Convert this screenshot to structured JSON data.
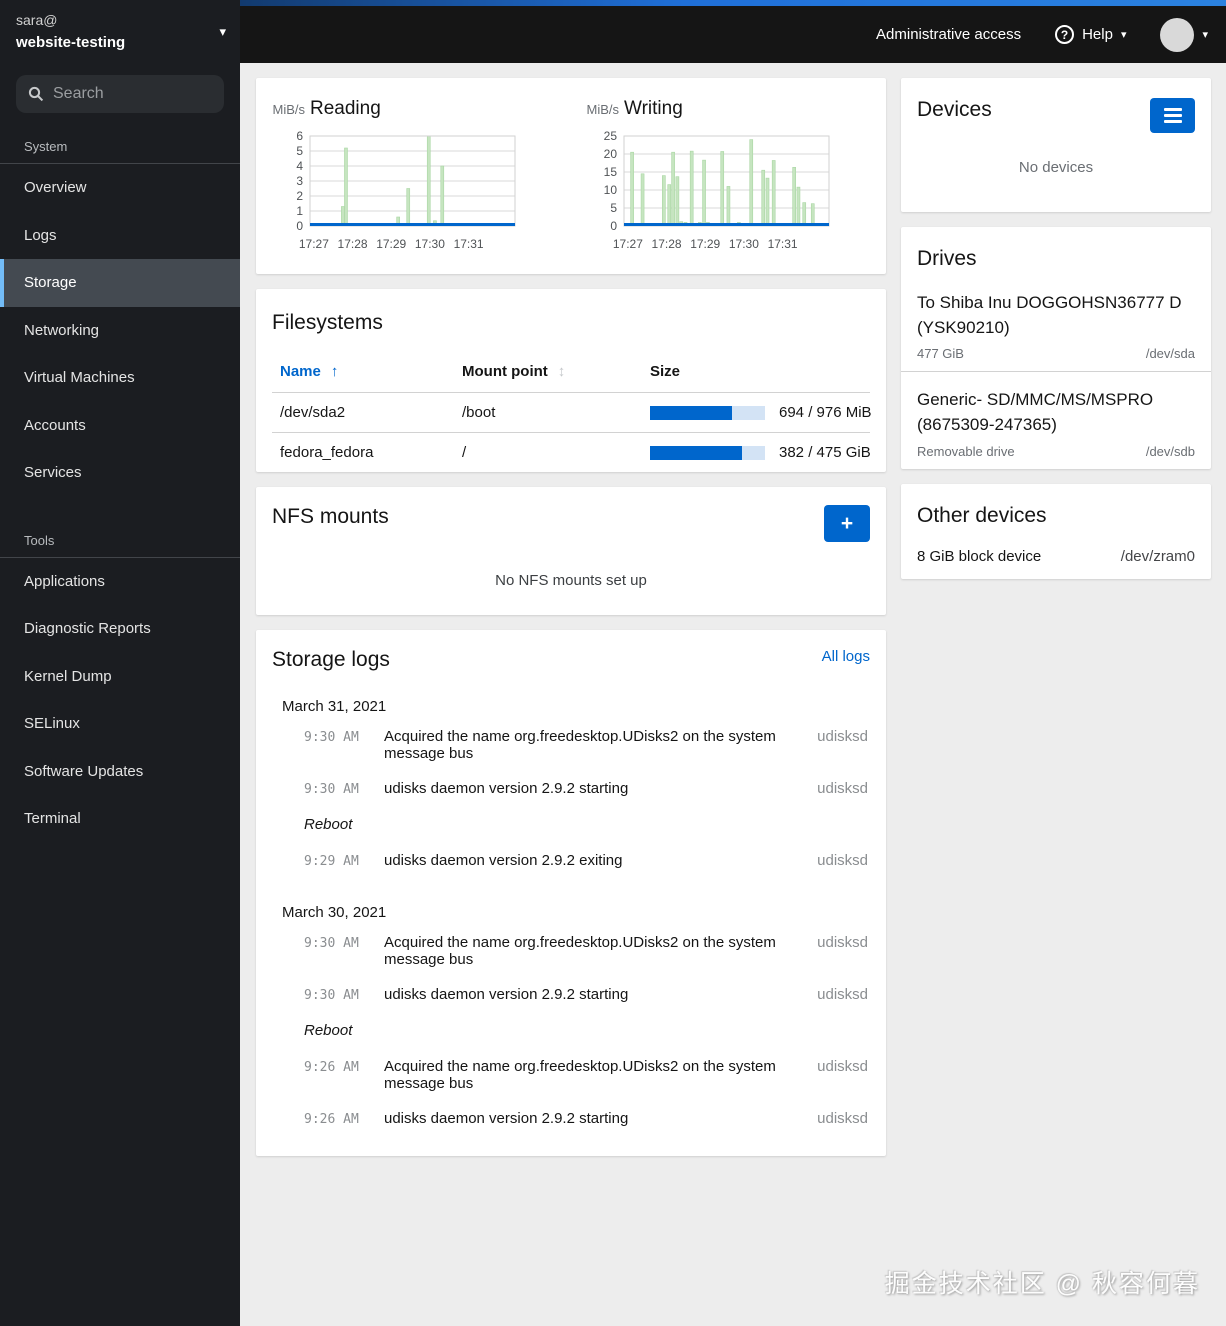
{
  "sidebar": {
    "user": "sara@",
    "host": "website-testing",
    "search_placeholder": "Search",
    "sections": [
      {
        "label": "System",
        "items": [
          {
            "label": "Overview"
          },
          {
            "label": "Logs"
          },
          {
            "label": "Storage"
          },
          {
            "label": "Networking"
          },
          {
            "label": "Virtual Machines"
          },
          {
            "label": "Accounts"
          },
          {
            "label": "Services"
          }
        ]
      },
      {
        "label": "Tools",
        "items": [
          {
            "label": "Applications"
          },
          {
            "label": "Diagnostic Reports"
          },
          {
            "label": "Kernel Dump"
          },
          {
            "label": "SELinux"
          },
          {
            "label": "Software Updates"
          },
          {
            "label": "Terminal"
          }
        ]
      }
    ],
    "active_item": "Storage"
  },
  "masthead": {
    "admin_access": "Administrative access",
    "help": "Help"
  },
  "chart_data": [
    {
      "type": "spike",
      "title": "Reading",
      "unit": "MiB/s",
      "ylim": [
        0,
        6
      ],
      "yticks": [
        0,
        1,
        2,
        3,
        4,
        5,
        6
      ],
      "xlim": [
        0,
        5.3
      ],
      "xticks": [
        {
          "x": 0.1,
          "label": "17:27"
        },
        {
          "x": 1.1,
          "label": "17:28"
        },
        {
          "x": 2.1,
          "label": "17:29"
        },
        {
          "x": 3.1,
          "label": "17:30"
        },
        {
          "x": 4.1,
          "label": "17:31"
        }
      ],
      "points": [
        {
          "x": 0.85,
          "y": 1.3
        },
        {
          "x": 0.93,
          "y": 5.2
        },
        {
          "x": 1.7,
          "y": 0.15
        },
        {
          "x": 2.28,
          "y": 0.6
        },
        {
          "x": 2.54,
          "y": 2.5
        },
        {
          "x": 3.07,
          "y": 6.0
        },
        {
          "x": 3.23,
          "y": 0.35
        },
        {
          "x": 3.42,
          "y": 4.0
        }
      ],
      "grid": true,
      "spike_color": "#c6e5c0",
      "spike_edge": "#a9d6a3",
      "baseline_color": "#0066cc"
    },
    {
      "type": "spike",
      "title": "Writing",
      "unit": "MiB/s",
      "ylim": [
        0,
        25
      ],
      "yticks": [
        0,
        5,
        10,
        15,
        20,
        25
      ],
      "xlim": [
        0,
        5.3
      ],
      "xticks": [
        {
          "x": 0.1,
          "label": "17:27"
        },
        {
          "x": 1.1,
          "label": "17:28"
        },
        {
          "x": 2.1,
          "label": "17:29"
        },
        {
          "x": 3.1,
          "label": "17:30"
        },
        {
          "x": 4.1,
          "label": "17:31"
        }
      ],
      "points": [
        {
          "x": 0.21,
          "y": 20.5
        },
        {
          "x": 0.48,
          "y": 14.5
        },
        {
          "x": 1.03,
          "y": 14.0
        },
        {
          "x": 1.17,
          "y": 11.5
        },
        {
          "x": 1.27,
          "y": 20.5
        },
        {
          "x": 1.38,
          "y": 13.7
        },
        {
          "x": 1.48,
          "y": 1.2
        },
        {
          "x": 1.59,
          "y": 1.0
        },
        {
          "x": 1.75,
          "y": 20.8
        },
        {
          "x": 1.96,
          "y": 1.0
        },
        {
          "x": 2.07,
          "y": 18.3
        },
        {
          "x": 2.17,
          "y": 1.0
        },
        {
          "x": 2.54,
          "y": 20.7
        },
        {
          "x": 2.7,
          "y": 11.0
        },
        {
          "x": 2.97,
          "y": 1.0
        },
        {
          "x": 3.29,
          "y": 24.0
        },
        {
          "x": 3.6,
          "y": 15.5
        },
        {
          "x": 3.71,
          "y": 13.3
        },
        {
          "x": 3.87,
          "y": 18.2
        },
        {
          "x": 4.4,
          "y": 16.3
        },
        {
          "x": 4.51,
          "y": 10.8
        },
        {
          "x": 4.66,
          "y": 6.5
        },
        {
          "x": 4.88,
          "y": 6.2
        }
      ],
      "grid": true,
      "spike_color": "#c6e5c0",
      "spike_edge": "#a9d6a3",
      "baseline_color": "#0066cc"
    }
  ],
  "filesystems": {
    "title": "Filesystems",
    "columns": {
      "name": "Name",
      "mount": "Mount point",
      "size": "Size"
    },
    "sort_up_icon": "↑",
    "sort_both_icon": "↕",
    "rows": [
      {
        "name": "/dev/sda2",
        "mount": "/boot",
        "used": 694,
        "total": 976,
        "size_label": "694 / 976 MiB"
      },
      {
        "name": "fedora_fedora",
        "mount": "/",
        "used": 382,
        "total": 475,
        "size_label": "382 / 475 GiB"
      }
    ]
  },
  "nfs": {
    "title": "NFS mounts",
    "add_label": "+",
    "empty": "No NFS mounts set up"
  },
  "logs": {
    "title": "Storage logs",
    "all_logs": "All logs",
    "groups": [
      {
        "date": "March 31, 2021",
        "entries": [
          {
            "time": "9:30 AM",
            "message": "Acquired the name org.freedesktop.UDisks2 on the system message bus",
            "service": "udisksd"
          },
          {
            "time": "9:30 AM",
            "message": "udisks daemon version 2.9.2 starting",
            "service": "udisksd"
          },
          {
            "reboot": "Reboot"
          },
          {
            "time": "9:29 AM",
            "message": "udisks daemon version 2.9.2 exiting",
            "service": "udisksd"
          }
        ]
      },
      {
        "date": "March 30, 2021",
        "entries": [
          {
            "time": "9:30 AM",
            "message": "Acquired the name org.freedesktop.UDisks2 on the system message bus",
            "service": "udisksd"
          },
          {
            "time": "9:30 AM",
            "message": "udisks daemon version 2.9.2 starting",
            "service": "udisksd"
          },
          {
            "reboot": "Reboot"
          },
          {
            "time": "9:26 AM",
            "message": "Acquired the name org.freedesktop.UDisks2 on the system message bus",
            "service": "udisksd"
          },
          {
            "time": "9:26 AM",
            "message": "udisks daemon version 2.9.2 starting",
            "service": "udisksd"
          }
        ]
      }
    ]
  },
  "devices": {
    "title": "Devices",
    "empty": "No devices"
  },
  "drives": {
    "title": "Drives",
    "items": [
      {
        "name": "To Shiba Inu DOGGOHSN36777 D (YSK90210)",
        "detail": "477 GiB",
        "path": "/dev/sda"
      },
      {
        "name": "Generic- SD/MMC/MS/MSPRO (8675309-247365)",
        "detail": "Removable drive",
        "path": "/dev/sdb"
      }
    ]
  },
  "other_devices": {
    "title": "Other devices",
    "items": [
      {
        "name": "8 GiB block device",
        "path": "/dev/zram0"
      }
    ]
  },
  "watermark": "掘金技术社区 @ 秋容何暮",
  "colors": {
    "accent": "#0066cc",
    "nav_active_border": "#73bcf7",
    "spike_green": "#c6e5c0"
  }
}
